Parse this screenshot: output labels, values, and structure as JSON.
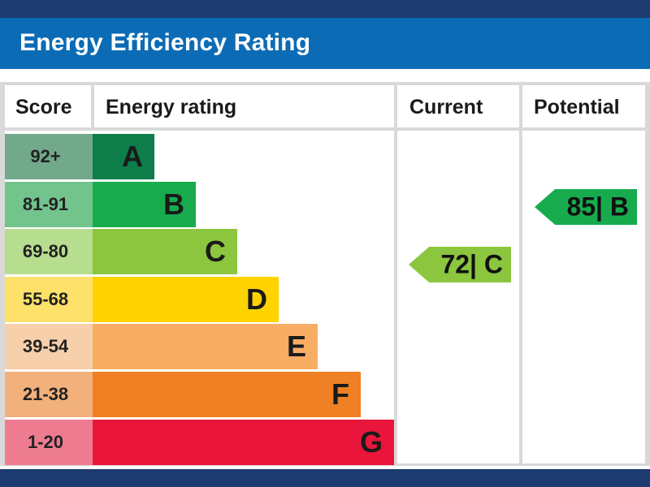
{
  "header": {
    "title": "Energy Efficiency Rating"
  },
  "columns": {
    "score": "Score",
    "energy_rating": "Energy rating",
    "current": "Current",
    "potential": "Potential"
  },
  "colors": {
    "band_A_score": "#71a98a",
    "band_A_bar": "#0d7d4a",
    "band_B_score": "#72c48c",
    "band_B_bar": "#17ab4e",
    "band_C_score": "#b7dd8f",
    "band_C_bar": "#8cc63e",
    "band_D_score": "#fde16a",
    "band_D_bar": "#ffd300",
    "band_E_score": "#f7cfaa",
    "band_E_bar": "#f9ac64",
    "band_F_score": "#f2b07b",
    "band_F_bar": "#ef8023",
    "band_G_score": "#ee7c90",
    "band_G_bar": "#e9153b"
  },
  "chart_data": {
    "type": "bar",
    "categories": [
      "A",
      "B",
      "C",
      "D",
      "E",
      "F",
      "G"
    ],
    "score_ranges": [
      "92+",
      "81-91",
      "69-80",
      "55-68",
      "39-54",
      "21-38",
      "1-20"
    ],
    "current": {
      "score": 72,
      "band": "C",
      "label": "72| C"
    },
    "potential": {
      "score": 85,
      "band": "B",
      "label": "85| B"
    }
  }
}
